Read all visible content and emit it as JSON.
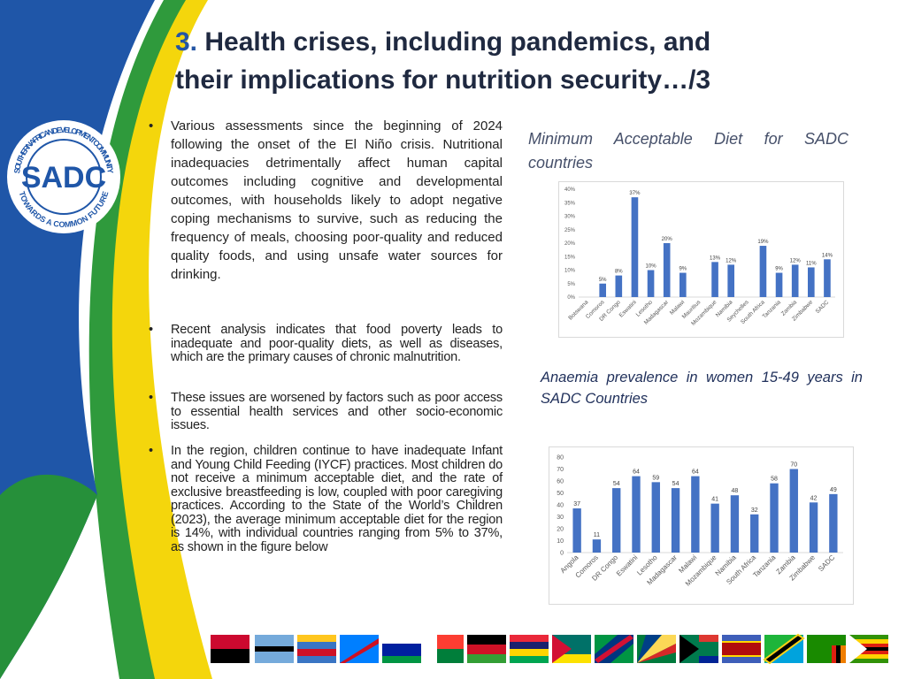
{
  "logo": {
    "ring_top": "SOUTHERN AFRICAN DEVELOPMENT COMMUNITY",
    "ring_bottom": "TOWARDS A COMMON FUTURE",
    "center": "SADC"
  },
  "header": {
    "number": "3.",
    "line1": "Health crises, including pandemics, and",
    "line2": "their implications for nutrition security…/3"
  },
  "bullets": [
    "Various assessments since the beginning of 2024 following the onset of the El Niño crisis. Nutritional inadequacies detrimentally affect human capital outcomes including cognitive and developmental outcomes, with households likely to adopt negative coping mechanisms to survive, such as reducing the frequency of meals, choosing poor-quality and reduced quality foods, and using unsafe water sources for drinking.",
    "Recent analysis indicates that food poverty leads to inadequate and poor-quality diets, as well as diseases, which are the primary causes of chronic malnutrition.",
    "These issues are worsened by factors such as poor access to essential health services and other socio-economic issues.",
    "In the region, children continue to have inadequate Infant and Young Child Feeding (IYCF) practices. Most children do not receive a minimum acceptable diet, and the rate of exclusive breastfeeding is low, coupled with poor caregiving practices. According to the State of the World’s Children (2023), the average minimum acceptable diet for the region is 14%, with individual countries ranging from 5% to 37%, as shown in the figure below"
  ],
  "chart_data": [
    {
      "type": "bar",
      "title": "Minimum Acceptable Diet for SADC countries",
      "categories": [
        "Botswana",
        "Comoros",
        "DR Congo",
        "Eswatini",
        "Lesotho",
        "Madagascar",
        "Malawi",
        "Mauritius",
        "Mozambique",
        "Namibia",
        "Seychelles",
        "South Africa",
        "Tanzania",
        "Zambia",
        "Zimbabwe",
        "SADC"
      ],
      "values": [
        null,
        5,
        8,
        37,
        10,
        20,
        9,
        null,
        13,
        12,
        null,
        19,
        9,
        12,
        11,
        14
      ],
      "value_labels": [
        null,
        "5%",
        "8%",
        "37%",
        "10%",
        "20%",
        "9%",
        null,
        "13%",
        "12%",
        null,
        "19%",
        "9%",
        "12%",
        "11%",
        "14%"
      ],
      "color": "#4472c4",
      "ylim": [
        0,
        40
      ],
      "yticks": [
        {
          "value": 0,
          "label": "0%"
        },
        {
          "value": 5,
          "label": "5%"
        },
        {
          "value": 10,
          "label": "10%"
        },
        {
          "value": 15,
          "label": "15%"
        },
        {
          "value": 20,
          "label": "20%"
        },
        {
          "value": 25,
          "label": "25%"
        },
        {
          "value": 30,
          "label": "30%"
        },
        {
          "value": 35,
          "label": "35%"
        },
        {
          "value": 40,
          "label": "40%"
        }
      ],
      "grid": false
    },
    {
      "type": "bar",
      "title": "Anaemia prevalence in women 15-49 years in SADC Countries",
      "categories": [
        "Angola",
        "Comoros",
        "DR Congo",
        "Eswatini",
        "Lesotho",
        "Madagascar",
        "Malawi",
        "Mozambique",
        "Namibia",
        "South Africa",
        "Tanzania",
        "Zambia",
        "Zimbabwe",
        "SADC"
      ],
      "values": [
        37,
        11,
        54,
        64,
        59,
        54,
        64,
        41,
        48,
        32,
        58,
        70,
        42,
        49
      ],
      "color": "#4472c4",
      "ylim": [
        0,
        80
      ],
      "yticks": [
        0,
        10,
        20,
        30,
        40,
        50,
        60,
        70,
        80
      ],
      "grid": false
    }
  ]
}
